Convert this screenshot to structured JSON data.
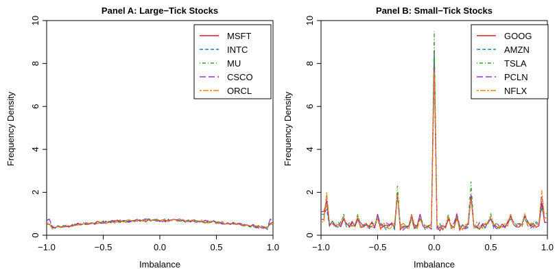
{
  "chart_data": [
    {
      "type": "line",
      "title": "Panel A: Large−Tick Stocks",
      "xlabel": "Imbalance",
      "ylabel": "Frequency Density",
      "xlim": [
        -1.0,
        1.0
      ],
      "ylim": [
        0,
        10
      ],
      "xticks": [
        "−1.0",
        "−0.5",
        "0.0",
        "0.5",
        "1.0"
      ],
      "yticks": [
        "0",
        "2",
        "4",
        "6",
        "8",
        "10"
      ],
      "legend_position": "top-right",
      "series": [
        {
          "name": "MSFT",
          "color": "#e31a1c",
          "dash": "solid"
        },
        {
          "name": "INTC",
          "color": "#1f78b4",
          "dash": "dashed"
        },
        {
          "name": "MU",
          "color": "#33a02c",
          "dash": "dotdash"
        },
        {
          "name": "CSCO",
          "color": "#9933cc",
          "dash": "longdash"
        },
        {
          "name": "ORCL",
          "color": "#ff7f00",
          "dash": "twodash"
        }
      ]
    },
    {
      "type": "line",
      "title": "Panel B: Small−Tick Stocks",
      "xlabel": "Imbalance",
      "ylabel": "Frequency Density",
      "xlim": [
        -1.0,
        1.0
      ],
      "ylim": [
        0,
        10
      ],
      "xticks": [
        "−1.0",
        "−0.5",
        "0.0",
        "0.5",
        "1.0"
      ],
      "yticks": [
        "0",
        "2",
        "4",
        "6",
        "8",
        "10"
      ],
      "legend_position": "top-right",
      "series": [
        {
          "name": "GOOG",
          "color": "#e31a1c",
          "dash": "solid"
        },
        {
          "name": "AMZN",
          "color": "#1f78b4",
          "dash": "dashed"
        },
        {
          "name": "TSLA",
          "color": "#33a02c",
          "dash": "dotdash"
        },
        {
          "name": "PCLN",
          "color": "#9933cc",
          "dash": "longdash"
        },
        {
          "name": "NFLX",
          "color": "#ff7f00",
          "dash": "twodash"
        }
      ]
    }
  ]
}
